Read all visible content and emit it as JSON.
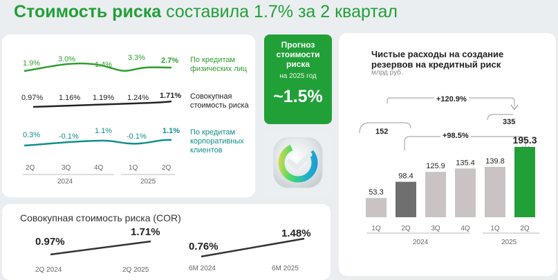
{
  "title": {
    "bold": "Стоимость риска",
    "rest": "составила 1.7% за 2 квартал"
  },
  "cor_chart": {
    "series": [
      {
        "name_lines": [
          "По кредитам",
          "физических лиц"
        ],
        "values_text": [
          "1.9%",
          "3.0%",
          "1.4%",
          "3.3%",
          "2.7%"
        ],
        "values": [
          1.9,
          3.0,
          1.4,
          3.3,
          2.7
        ],
        "color": "#2e9e2e"
      },
      {
        "name_lines": [
          "Совокупная",
          "стоимость риска"
        ],
        "values_text": [
          "0.97%",
          "1.16%",
          "1.19%",
          "1.24%",
          "1.71%"
        ],
        "values": [
          0.97,
          1.16,
          1.19,
          1.24,
          1.71
        ],
        "color": "#222222"
      },
      {
        "name_lines": [
          "По кредитам",
          "корпоративных",
          "клиентов"
        ],
        "values_text": [
          "0.3%",
          "-0.1%",
          "1.1%",
          "-0.1%",
          "1.1%"
        ],
        "values": [
          0.3,
          -0.1,
          1.1,
          -0.1,
          1.1
        ],
        "color": "#0d8f8a"
      }
    ],
    "quarters": [
      "2Q",
      "3Q",
      "4Q",
      "1Q",
      "2Q"
    ],
    "years": [
      "2024",
      "2025"
    ]
  },
  "forecast": {
    "title_lines": [
      "Прогноз",
      "стоимости",
      "риска"
    ],
    "subtitle": "на 2025 год",
    "value": "~1.5%"
  },
  "cor_summary": {
    "title": "Совокупная стоимость риска (COR)",
    "pairs": [
      {
        "from_value": "0.97%",
        "to_value": "1.71%",
        "from_label": "2Q 2024",
        "to_label": "2Q 2025"
      },
      {
        "from_value": "0.76%",
        "to_value": "1.48%",
        "from_label": "6M 2024",
        "to_label": "6M 2025"
      }
    ]
  },
  "provisions": {
    "title_lines": [
      "Чистые расходы на создание",
      "резервов на кредитный риск"
    ],
    "unit": "млрд руб.",
    "total_2024_h1": "152",
    "total_2025_h1": "335",
    "growth_h1": "+120.9%",
    "growth_q": "+98.5%",
    "years": [
      "2024",
      "2025"
    ]
  },
  "chart_data": {
    "type": "bar",
    "categories": [
      "1Q",
      "2Q",
      "3Q",
      "4Q",
      "1Q",
      "2Q"
    ],
    "values": [
      53.3,
      98.4,
      125.9,
      135.4,
      139.8,
      195.3
    ],
    "labels": [
      "53.3",
      "98.4",
      "125.9",
      "135.4",
      "139.8",
      "195.3"
    ],
    "colors": [
      "#c9c3c3",
      "#6f6f6f",
      "#c9c3c3",
      "#c9c3c3",
      "#c9c3c3",
      "#21a038"
    ],
    "ylim": [
      0,
      200
    ]
  }
}
